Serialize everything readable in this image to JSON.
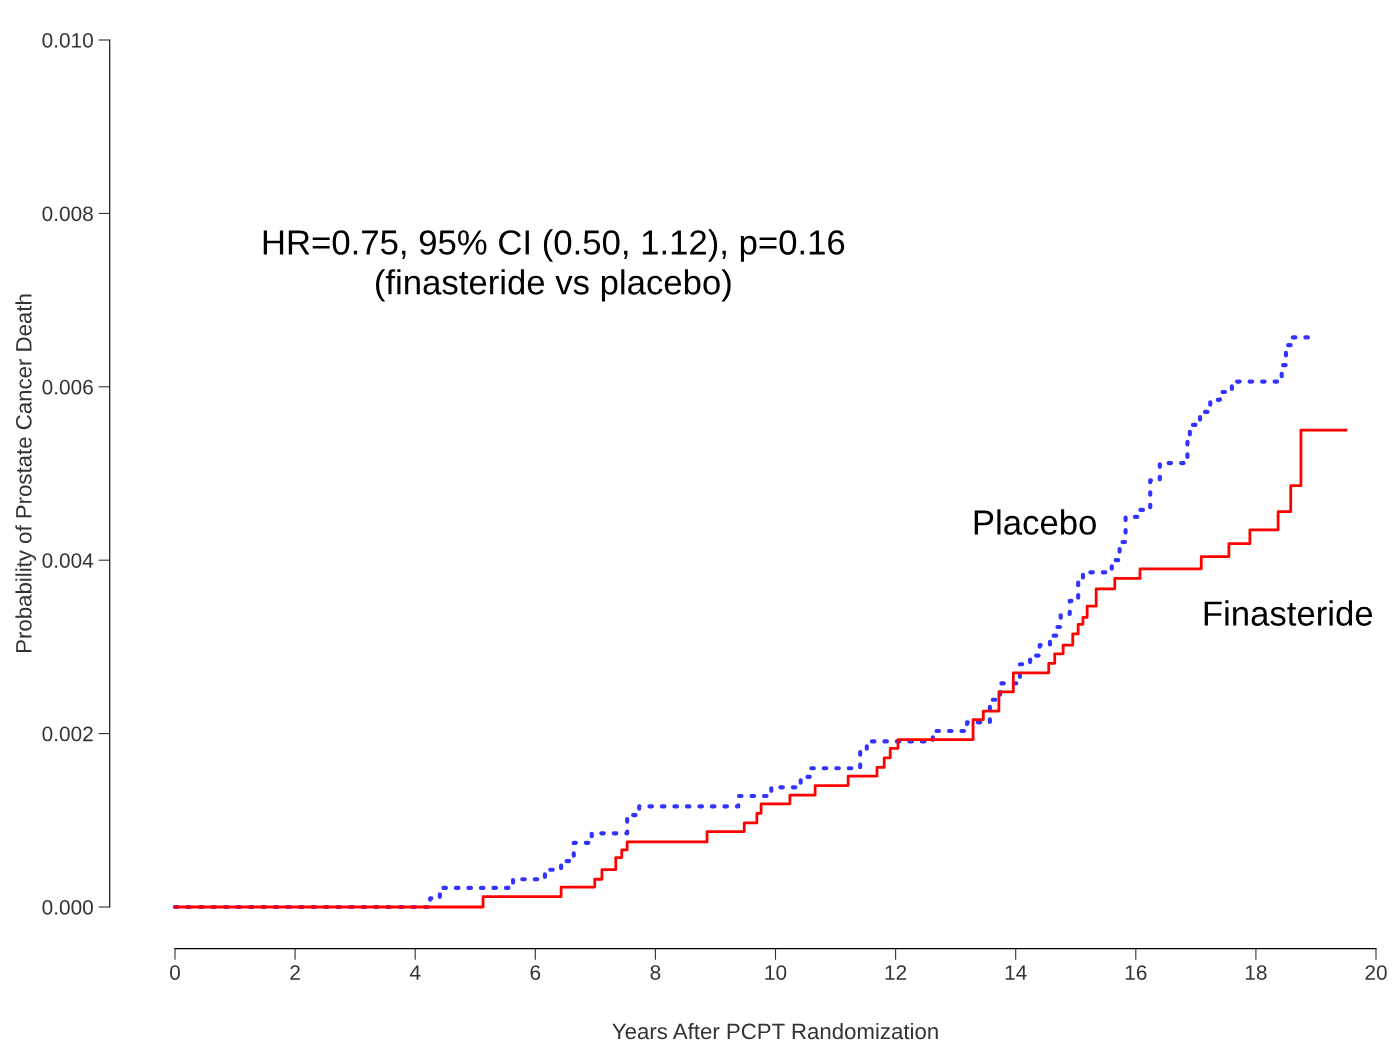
{
  "chart_data": {
    "type": "step",
    "xlabel": "Years After PCPT Randomization",
    "ylabel": "Probability of Prostate Cancer Death",
    "annotations": [
      "HR=0.75, 95% CI (0.50, 1.12), p=0.16\n(finasteride vs placebo)"
    ],
    "xlim": [
      0,
      20
    ],
    "xticks": [
      0,
      2,
      4,
      6,
      8,
      10,
      12,
      14,
      16,
      18,
      20
    ],
    "ylim": [
      0,
      0.01
    ],
    "yticks": [
      {
        "value": 0,
        "label": "0.000"
      },
      {
        "value": 0.002,
        "label": "0.002"
      },
      {
        "value": 0.004,
        "label": "0.004"
      },
      {
        "value": 0.006,
        "label": "0.006"
      },
      {
        "value": 0.008,
        "label": "0.008"
      },
      {
        "value": 0.01,
        "label": "0.010"
      }
    ],
    "grid": false,
    "legend": false,
    "marker": "none",
    "series": [
      {
        "name": "Placebo",
        "color": "#3333ff",
        "line_style": "dotted",
        "x": [
          0,
          4.25,
          4.41,
          5.63,
          6.16,
          6.43,
          6.64,
          6.94,
          7.53,
          7.73,
          9.38,
          9.93,
          10.42,
          10.57,
          11.41,
          11.52,
          12.62,
          13.19,
          13.57,
          13.74,
          14.07,
          14.24,
          14.4,
          14.57,
          14.69,
          14.75,
          14.9,
          15.04,
          15.12,
          15.6,
          15.73,
          15.83,
          16.07,
          16.24,
          16.4,
          16.86,
          16.9,
          17.07,
          17.24,
          17.4,
          17.6,
          18.43,
          18.5,
          18.6,
          18.9
        ],
        "values": [
          0,
          0.0001,
          0.00022,
          0.00032,
          0.00043,
          0.00053,
          0.00074,
          0.00085,
          0.00106,
          0.00116,
          0.00128,
          0.00138,
          0.0015,
          0.0016,
          0.00181,
          0.00191,
          0.00203,
          0.00213,
          0.00239,
          0.00258,
          0.0028,
          0.0029,
          0.00302,
          0.00313,
          0.00323,
          0.00338,
          0.00353,
          0.00376,
          0.00386,
          0.004,
          0.00421,
          0.0045,
          0.00458,
          0.00492,
          0.00512,
          0.00539,
          0.00556,
          0.00571,
          0.00585,
          0.00594,
          0.00606,
          0.00625,
          0.00648,
          0.00657,
          0.00657
        ]
      },
      {
        "name": "Finasteride",
        "color": "#ff0000",
        "line_style": "solid",
        "x": [
          0,
          5.13,
          6.43,
          6.99,
          7.11,
          7.34,
          7.44,
          7.53,
          8.86,
          9.48,
          9.69,
          9.76,
          10.24,
          10.66,
          11.21,
          11.69,
          11.81,
          11.91,
          12.04,
          13.29,
          13.46,
          13.72,
          13.96,
          14.55,
          14.65,
          14.79,
          14.95,
          15.04,
          15.12,
          15.19,
          15.34,
          15.65,
          16.07,
          17.09,
          17.55,
          17.9,
          18.37,
          18.58,
          18.75,
          19.5
        ],
        "values": [
          0,
          0.00012,
          0.00023,
          0.00032,
          0.00043,
          0.00057,
          0.00066,
          0.00075,
          0.00087,
          0.00097,
          0.00108,
          0.00119,
          0.00129,
          0.0014,
          0.00151,
          0.00161,
          0.00172,
          0.00183,
          0.00193,
          0.00216,
          0.00226,
          0.00248,
          0.0027,
          0.00281,
          0.00292,
          0.00302,
          0.00315,
          0.00326,
          0.00334,
          0.00347,
          0.00367,
          0.00379,
          0.0039,
          0.00404,
          0.00419,
          0.00435,
          0.00456,
          0.00486,
          0.0055,
          0.0055
        ]
      }
    ]
  }
}
